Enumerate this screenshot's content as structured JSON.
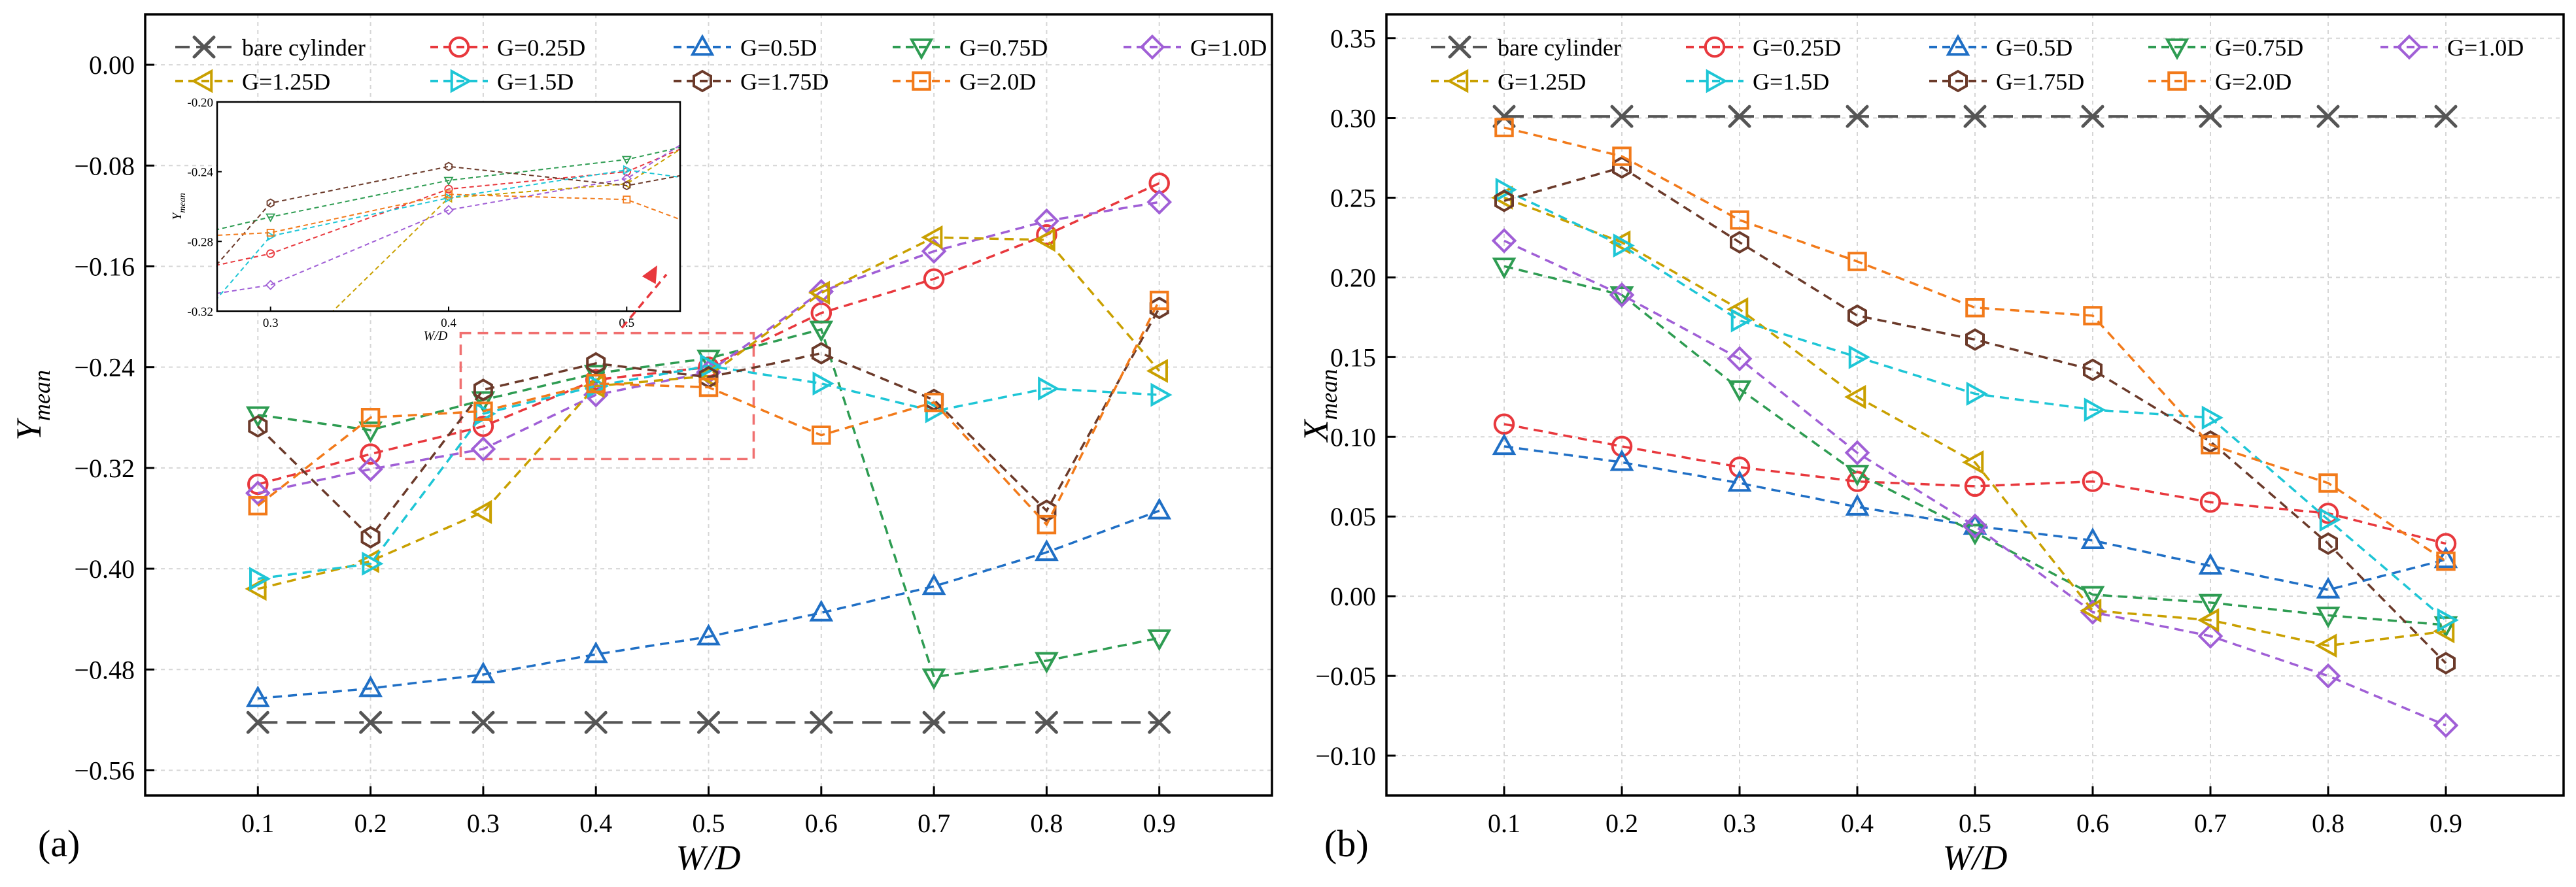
{
  "chart_data": [
    {
      "type": "line",
      "panel_label": "(a)",
      "title": "",
      "xlabel": "W/D",
      "ylabel": "Y",
      "ylabel_sub": "mean",
      "xlim": [
        0,
        1
      ],
      "ylim": [
        -0.58,
        0.04
      ],
      "x": [
        0.1,
        0.2,
        0.3,
        0.4,
        0.5,
        0.6,
        0.7,
        0.8,
        0.9
      ],
      "xticks": [
        0.1,
        0.2,
        0.3,
        0.4,
        0.5,
        0.6,
        0.7,
        0.8,
        0.9
      ],
      "xtick_labels": [
        "0.1",
        "0.2",
        "0.3",
        "0.4",
        "0.5",
        "0.6",
        "0.7",
        "0.8",
        "0.9"
      ],
      "yticks": [
        0.0,
        -0.08,
        -0.16,
        -0.24,
        -0.32,
        -0.4,
        -0.48,
        -0.56
      ],
      "ytick_labels": [
        "0.00",
        "−0.08",
        "−0.16",
        "−0.24",
        "−0.32",
        "−0.40",
        "−0.48",
        "−0.56"
      ],
      "grid": true,
      "legend_position": "top",
      "series": [
        {
          "name": "bare cylinder",
          "color": "#555555",
          "marker": "x",
          "dash": "long",
          "values": [
            -0.522,
            -0.522,
            -0.522,
            -0.522,
            -0.522,
            -0.522,
            -0.522,
            -0.522,
            -0.522
          ]
        },
        {
          "name": "G=0.25D",
          "color": "#e8383d",
          "marker": "circle",
          "values": [
            -0.333,
            -0.309,
            -0.287,
            -0.25,
            -0.24,
            -0.197,
            -0.17,
            -0.135,
            -0.094
          ]
        },
        {
          "name": "G=0.5D",
          "color": "#1f6fc5",
          "marker": "triangle-up",
          "values": [
            -0.503,
            -0.495,
            -0.484,
            -0.468,
            -0.454,
            -0.435,
            -0.414,
            -0.387,
            -0.354
          ]
        },
        {
          "name": "G=0.75D",
          "color": "#2e9c52",
          "marker": "triangle-down",
          "values": [
            -0.278,
            -0.29,
            -0.266,
            -0.245,
            -0.233,
            -0.21,
            -0.486,
            -0.473,
            -0.455
          ]
        },
        {
          "name": "G=1.0D",
          "color": "#a05fd6",
          "marker": "diamond",
          "values": [
            -0.34,
            -0.321,
            -0.305,
            -0.262,
            -0.244,
            -0.18,
            -0.148,
            -0.124,
            -0.109
          ]
        },
        {
          "name": "G=1.25D",
          "color": "#c9a000",
          "marker": "triangle-left",
          "values": [
            -0.416,
            -0.394,
            -0.355,
            -0.255,
            -0.247,
            -0.181,
            -0.137,
            -0.139,
            -0.243
          ]
        },
        {
          "name": "G=1.5D",
          "color": "#1ec6d6",
          "marker": "triangle-right",
          "values": [
            -0.408,
            -0.396,
            -0.277,
            -0.255,
            -0.239,
            -0.253,
            -0.275,
            -0.257,
            -0.262
          ]
        },
        {
          "name": "G=1.75D",
          "color": "#6b3a2a",
          "marker": "hexagon",
          "values": [
            -0.287,
            -0.375,
            -0.258,
            -0.237,
            -0.248,
            -0.229,
            -0.266,
            -0.354,
            -0.193
          ]
        },
        {
          "name": "G=2.0D",
          "color": "#f27a1a",
          "marker": "square",
          "values": [
            -0.35,
            -0.28,
            -0.275,
            -0.253,
            -0.256,
            -0.294,
            -0.268,
            -0.365,
            -0.187
          ]
        }
      ],
      "highlight_box": {
        "x_range": [
          0.28,
          0.54
        ],
        "y_range": [
          -0.313,
          -0.213
        ],
        "color": "#f07070"
      },
      "inset": {
        "xlabel": "W/D",
        "ylabel": "Y",
        "ylabel_sub": "mean",
        "xlim": [
          0.27,
          0.53
        ],
        "ylim": [
          -0.32,
          -0.2
        ],
        "xticks": [
          0.3,
          0.4,
          0.5
        ],
        "xtick_labels": [
          "0.3",
          "0.4",
          "0.5"
        ],
        "yticks": [
          -0.2,
          -0.24,
          -0.28,
          -0.32
        ],
        "ytick_labels": [
          "-0.20",
          "-0.24",
          "-0.28",
          "-0.32"
        ]
      }
    },
    {
      "type": "line",
      "panel_label": "(b)",
      "title": "",
      "xlabel": "W/D",
      "ylabel": "X",
      "ylabel_sub": "mean",
      "xlim": [
        0,
        1
      ],
      "ylim": [
        -0.125,
        0.365
      ],
      "x": [
        0.1,
        0.2,
        0.3,
        0.4,
        0.5,
        0.6,
        0.7,
        0.8,
        0.9
      ],
      "xticks": [
        0.1,
        0.2,
        0.3,
        0.4,
        0.5,
        0.6,
        0.7,
        0.8,
        0.9
      ],
      "xtick_labels": [
        "0.1",
        "0.2",
        "0.3",
        "0.4",
        "0.5",
        "0.6",
        "0.7",
        "0.8",
        "0.9"
      ],
      "yticks": [
        0.35,
        0.3,
        0.25,
        0.2,
        0.15,
        0.1,
        0.05,
        0.0,
        -0.05,
        -0.1
      ],
      "ytick_labels": [
        "0.35",
        "0.30",
        "0.25",
        "0.20",
        "0.15",
        "0.10",
        "0.05",
        "0.00",
        "−0.05",
        "−0.10"
      ],
      "grid": true,
      "legend_position": "top",
      "series": [
        {
          "name": "bare cylinder",
          "color": "#555555",
          "marker": "x",
          "dash": "long",
          "values": [
            0.301,
            0.301,
            0.301,
            0.301,
            0.301,
            0.301,
            0.301,
            0.301,
            0.301
          ]
        },
        {
          "name": "G=0.25D",
          "color": "#e8383d",
          "marker": "circle",
          "values": [
            0.108,
            0.094,
            0.081,
            0.072,
            0.069,
            0.072,
            0.059,
            0.052,
            0.033
          ]
        },
        {
          "name": "G=0.5D",
          "color": "#1f6fc5",
          "marker": "triangle-up",
          "values": [
            0.094,
            0.084,
            0.071,
            0.056,
            0.044,
            0.035,
            0.019,
            0.004,
            0.023
          ]
        },
        {
          "name": "G=0.75D",
          "color": "#2e9c52",
          "marker": "triangle-down",
          "values": [
            0.207,
            0.189,
            0.13,
            0.077,
            0.04,
            0.001,
            -0.004,
            -0.012,
            -0.018
          ]
        },
        {
          "name": "G=1.0D",
          "color": "#a05fd6",
          "marker": "diamond",
          "values": [
            0.223,
            0.189,
            0.149,
            0.09,
            0.044,
            -0.01,
            -0.025,
            -0.05,
            -0.081
          ]
        },
        {
          "name": "G=1.25D",
          "color": "#c9a000",
          "marker": "triangle-left",
          "values": [
            0.25,
            0.222,
            0.18,
            0.125,
            0.084,
            -0.009,
            -0.015,
            -0.031,
            -0.022
          ]
        },
        {
          "name": "G=1.5D",
          "color": "#1ec6d6",
          "marker": "triangle-right",
          "values": [
            0.255,
            0.22,
            0.173,
            0.15,
            0.127,
            0.117,
            0.112,
            0.048,
            -0.015
          ]
        },
        {
          "name": "G=1.75D",
          "color": "#6b3a2a",
          "marker": "hexagon",
          "values": [
            0.248,
            0.269,
            0.222,
            0.176,
            0.161,
            0.142,
            0.097,
            0.033,
            -0.042
          ]
        },
        {
          "name": "G=2.0D",
          "color": "#f27a1a",
          "marker": "square",
          "values": [
            0.294,
            0.276,
            0.236,
            0.21,
            0.181,
            0.176,
            0.095,
            0.071,
            0.022
          ]
        }
      ]
    }
  ]
}
